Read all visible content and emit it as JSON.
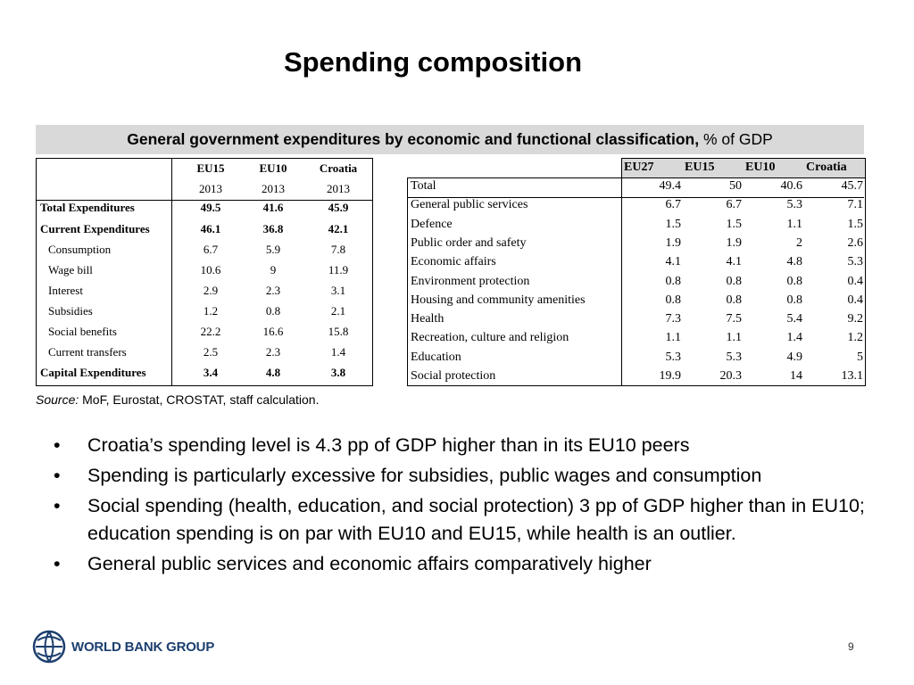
{
  "slide": {
    "title": "Spending composition",
    "subtitle_bold": "General government expenditures by economic and functional classification,",
    "subtitle_rest": " % of GDP",
    "page_number": "9",
    "logo_text": "WORLD BANK GROUP"
  },
  "left_table": {
    "columns": [
      "EU15",
      "EU10",
      "Croatia"
    ],
    "years": [
      "2013",
      "2013",
      "2013"
    ],
    "rows": [
      {
        "label": "Total Expenditures",
        "values": [
          "49.5",
          "41.6",
          "45.9"
        ],
        "bold": true
      },
      {
        "label": "Current Expenditures",
        "values": [
          "46.1",
          "36.8",
          "42.1"
        ],
        "bold": true
      },
      {
        "label": "Consumption",
        "values": [
          "6.7",
          "5.9",
          "7.8"
        ]
      },
      {
        "label": "Wage bill",
        "values": [
          "10.6",
          "9",
          "11.9"
        ]
      },
      {
        "label": "Interest",
        "values": [
          "2.9",
          "2.3",
          "3.1"
        ]
      },
      {
        "label": "Subsidies",
        "values": [
          "1.2",
          "0.8",
          "2.1"
        ]
      },
      {
        "label": "Social benefits",
        "values": [
          "22.2",
          "16.6",
          "15.8"
        ]
      },
      {
        "label": "Current transfers",
        "values": [
          "2.5",
          "2.3",
          "1.4"
        ]
      },
      {
        "label": "Capital Expenditures",
        "values": [
          "3.4",
          "4.8",
          "3.8"
        ],
        "bold": true
      }
    ]
  },
  "right_table": {
    "columns": [
      "EU27",
      "EU15",
      "EU10",
      "Croatia"
    ],
    "rows": [
      {
        "label": "Total",
        "values": [
          "49.4",
          "50",
          "40.6",
          "45.7"
        ]
      },
      {
        "label": "General public services",
        "values": [
          "6.7",
          "6.7",
          "5.3",
          "7.1"
        ]
      },
      {
        "label": "Defence",
        "values": [
          "1.5",
          "1.5",
          "1.1",
          "1.5"
        ]
      },
      {
        "label": "Public order and safety",
        "values": [
          "1.9",
          "1.9",
          "2",
          "2.6"
        ]
      },
      {
        "label": "Economic affairs",
        "values": [
          "4.1",
          "4.1",
          "4.8",
          "5.3"
        ]
      },
      {
        "label": "Environment protection",
        "values": [
          "0.8",
          "0.8",
          "0.8",
          "0.4"
        ]
      },
      {
        "label": "Housing and community amenities",
        "values": [
          "0.8",
          "0.8",
          "0.8",
          "0.4"
        ]
      },
      {
        "label": "Health",
        "values": [
          "7.3",
          "7.5",
          "5.4",
          "9.2"
        ]
      },
      {
        "label": "Recreation, culture and religion",
        "values": [
          "1.1",
          "1.1",
          "1.4",
          "1.2"
        ]
      },
      {
        "label": "Education",
        "values": [
          "5.3",
          "5.3",
          "4.9",
          "5"
        ]
      },
      {
        "label": "Social protection",
        "values": [
          "19.9",
          "20.3",
          "14",
          "13.1"
        ]
      }
    ]
  },
  "source": {
    "label": "Source:",
    "text": " MoF, Eurostat, CROSTAT, staff calculation."
  },
  "bullets": [
    "Croatia’s spending level is 4.3 pp of GDP higher than in its EU10 peers",
    "Spending is particularly excessive for subsidies, public wages and consumption",
    "Social spending (health, education, and social protection) 3 pp of GDP higher than in EU10; education spending is on par with EU10 and EU15, while health is an outlier.",
    "General public services and economic affairs comparatively higher"
  ]
}
